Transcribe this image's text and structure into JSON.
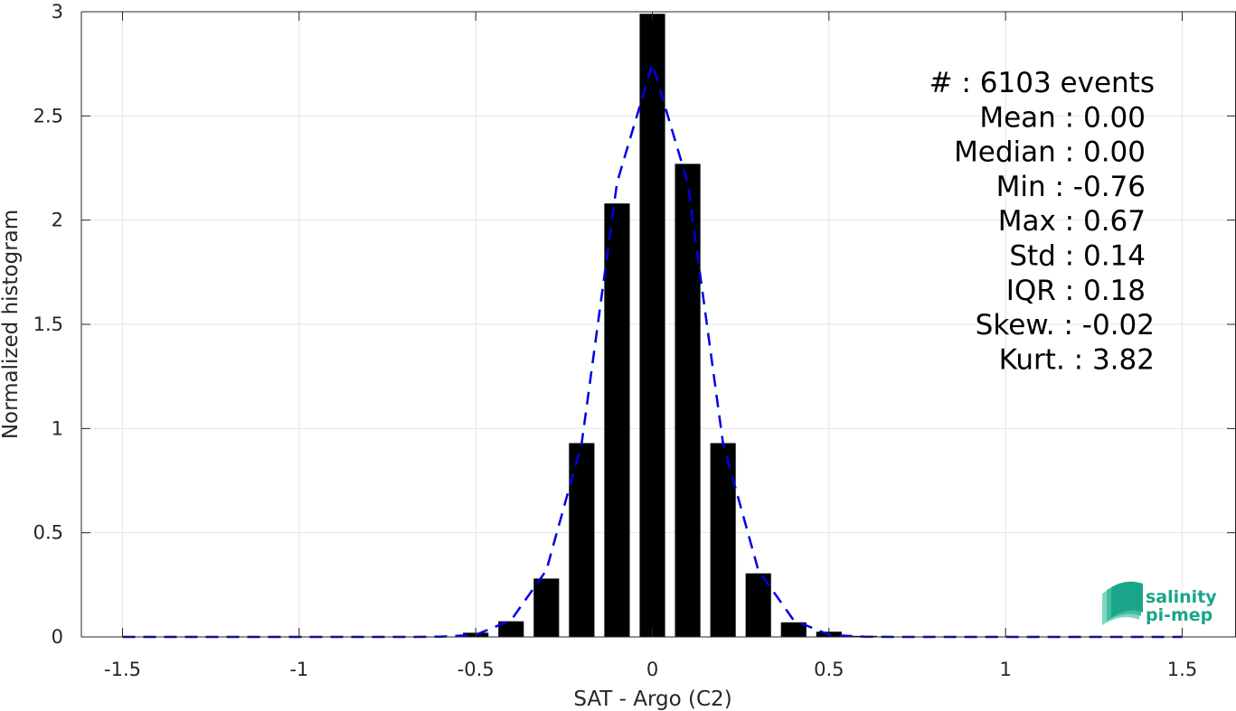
{
  "chart_data": {
    "type": "bar",
    "xlabel": "SAT - Argo (C2)",
    "ylabel": "Normalized histogram",
    "xlim": [
      -1.6,
      1.6
    ],
    "ylim": [
      0,
      3
    ],
    "grid": true,
    "x_ticks": [
      -1.5,
      -1,
      -0.5,
      0,
      0.5,
      1,
      1.5
    ],
    "x_tick_labels": [
      "-1.5",
      "-1",
      "-0.5",
      "0",
      "0.5",
      "1",
      "1.5"
    ],
    "y_ticks": [
      0,
      0.5,
      1,
      1.5,
      2,
      2.5,
      3
    ],
    "y_tick_labels": [
      "0",
      "0.5",
      "1",
      "1.5",
      "2",
      "2.5",
      "3"
    ],
    "bars": {
      "name": "histogram",
      "color": "#000000",
      "x": [
        -0.5,
        -0.4,
        -0.3,
        -0.2,
        -0.1,
        0.0,
        0.1,
        0.2,
        0.3,
        0.4,
        0.5,
        0.6
      ],
      "values": [
        0.02,
        0.075,
        0.28,
        0.93,
        2.08,
        2.99,
        2.27,
        0.93,
        0.305,
        0.07,
        0.025,
        0.005
      ]
    },
    "fit": {
      "name": "gaussian fit",
      "color": "#0000e6",
      "style": "dashed",
      "x": [
        -1.5,
        -1.4,
        -1.3,
        -1.2,
        -1.1,
        -1.0,
        -0.9,
        -0.8,
        -0.7,
        -0.6,
        -0.5,
        -0.4,
        -0.3,
        -0.2,
        -0.1,
        0.0,
        0.1,
        0.2,
        0.3,
        0.4,
        0.5,
        0.6,
        0.7,
        0.8,
        0.9,
        1.0,
        1.1,
        1.2,
        1.3,
        1.4,
        1.5
      ],
      "y": [
        0,
        0,
        0,
        0,
        0,
        0,
        0,
        0,
        0,
        0.001,
        0.01,
        0.08,
        0.32,
        0.93,
        2.18,
        2.75,
        2.18,
        0.93,
        0.32,
        0.08,
        0.01,
        0.001,
        0,
        0,
        0,
        0,
        0,
        0,
        0,
        0,
        0
      ]
    },
    "annotations": [
      "#  : 6103 events",
      "Mean : 0.00",
      "Median : 0.00",
      "Min : -0.76",
      "Max : 0.67",
      "Std : 0.14",
      "IQR : 0.18",
      "Skew. : -0.02",
      "Kurt. : 3.82"
    ]
  },
  "logo": {
    "line1": "salinity",
    "line2": "pi-mep",
    "color": "#1aa58a"
  }
}
